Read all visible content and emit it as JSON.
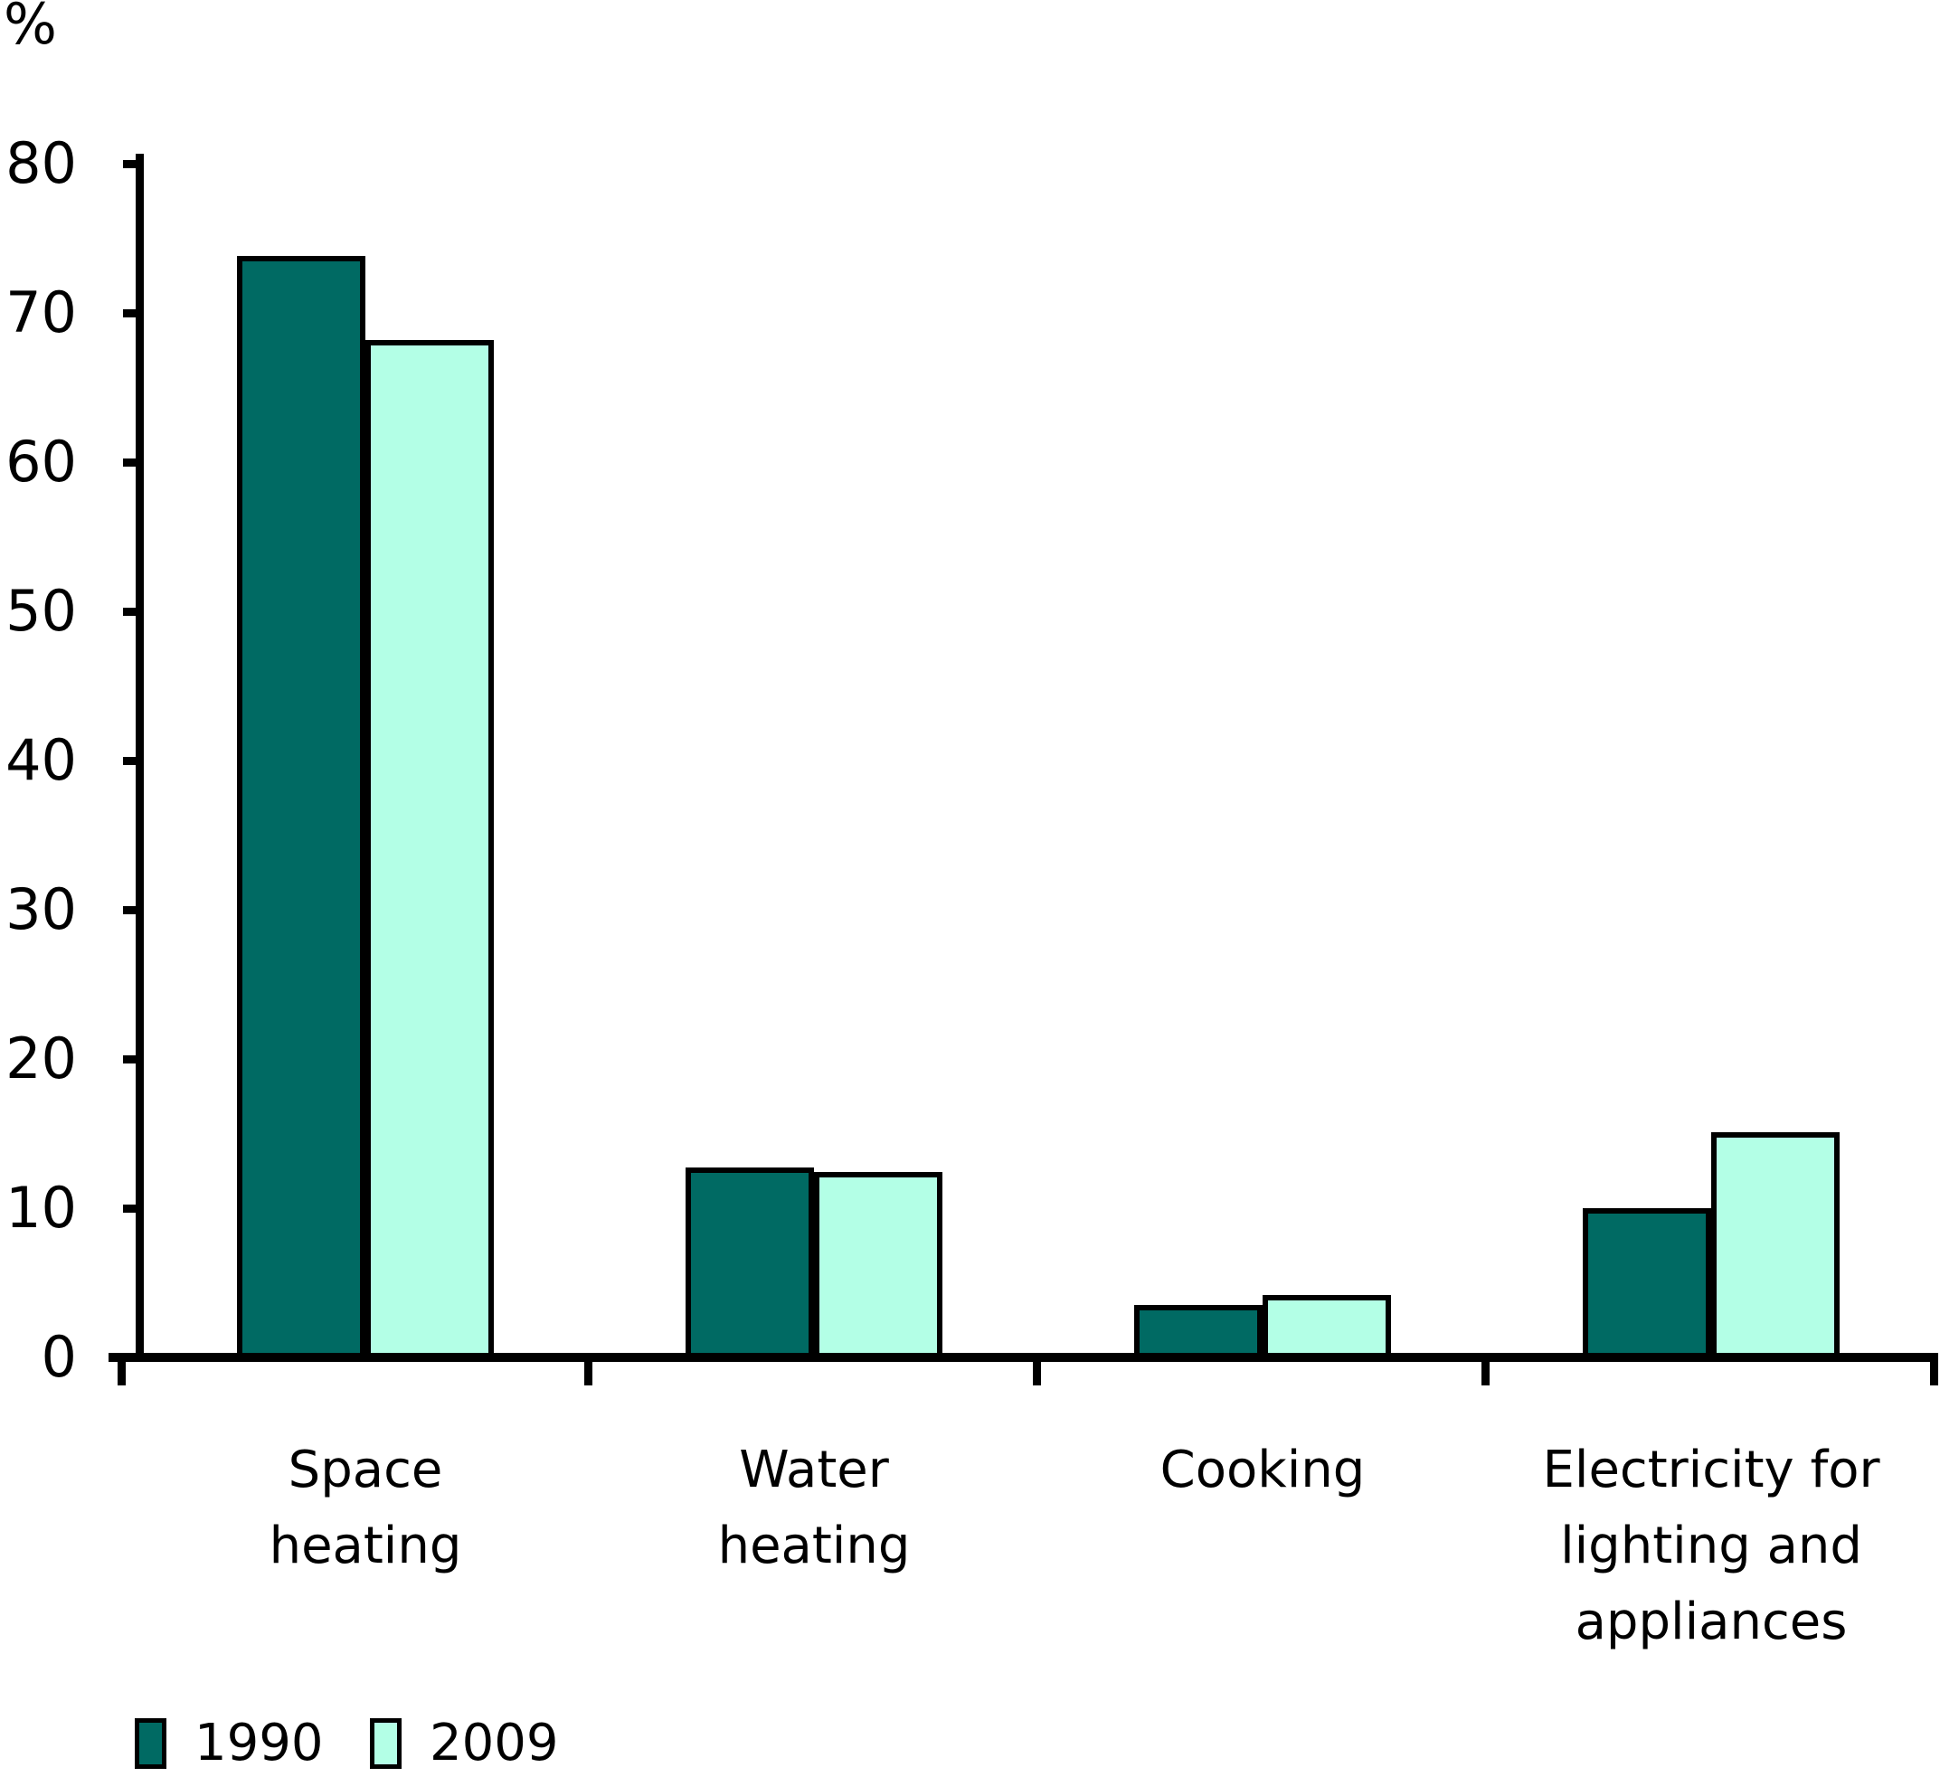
{
  "chart": {
    "unit_label": "%"
  },
  "chart_data": {
    "type": "bar",
    "title": "",
    "ylabel": "%",
    "xlabel": "",
    "ylim": [
      0,
      80
    ],
    "yticks": [
      0,
      10,
      20,
      30,
      40,
      50,
      60,
      70,
      80
    ],
    "grid": false,
    "legend_position": "bottom-left",
    "categories": [
      "Space heating",
      "Water heating",
      "Cooking",
      "Electricity for lighting and appliances"
    ],
    "category_label_lines": [
      [
        "Space",
        "heating"
      ],
      [
        "Water",
        "heating"
      ],
      [
        "Cooking"
      ],
      [
        "Electricity for",
        "lighting and",
        "appliances"
      ]
    ],
    "series": [
      {
        "name": "1990",
        "color": "#006A63",
        "values": [
          73.8,
          12.7,
          3.5,
          10.0
        ]
      },
      {
        "name": "2009",
        "color": "#B3FFE6",
        "values": [
          68.2,
          12.4,
          4.2,
          15.1
        ]
      }
    ],
    "bar_border_color": "#000000",
    "axis_color": "#000000"
  }
}
